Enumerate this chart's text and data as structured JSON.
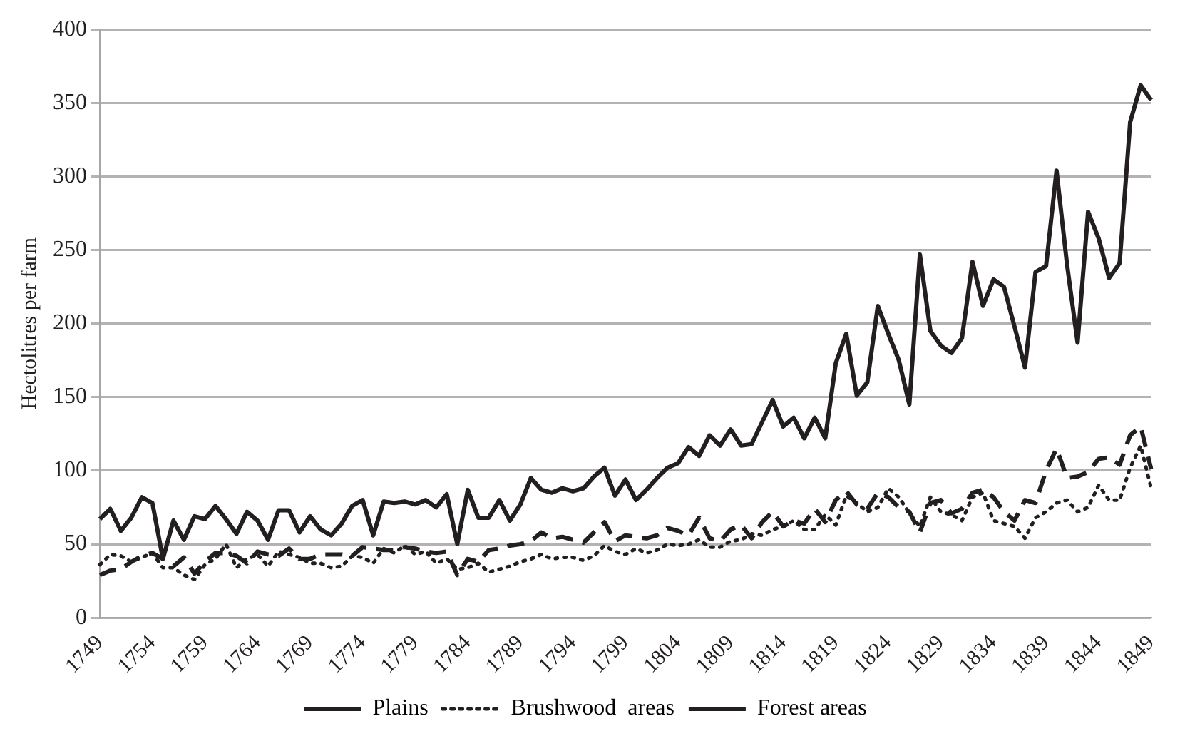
{
  "chart_data": {
    "type": "line",
    "ylabel": "Hectolitres per farm",
    "ylim": [
      0,
      400
    ],
    "yticks": [
      0,
      50,
      100,
      150,
      200,
      250,
      300,
      350,
      400
    ],
    "grid": "y",
    "legend": "bottom",
    "marker": "none",
    "categories": [
      "1749",
      null,
      null,
      null,
      null,
      "1754",
      null,
      null,
      null,
      null,
      "1759",
      null,
      null,
      null,
      null,
      "1764",
      null,
      null,
      null,
      null,
      "1769",
      null,
      null,
      null,
      null,
      "1774",
      null,
      null,
      null,
      null,
      "1779",
      null,
      null,
      null,
      null,
      "1784",
      null,
      null,
      null,
      null,
      "1789",
      null,
      null,
      null,
      null,
      "1794",
      null,
      null,
      null,
      null,
      "1799",
      null,
      null,
      null,
      null,
      "1804",
      null,
      null,
      null,
      null,
      "1809",
      null,
      null,
      null,
      null,
      "1814",
      null,
      null,
      null,
      null,
      "1819",
      null,
      null,
      null,
      null,
      "1824",
      null,
      null,
      null,
      null,
      "1829",
      null,
      null,
      null,
      null,
      "1834",
      null,
      null,
      null,
      null,
      "1839",
      null,
      null,
      null,
      null,
      "1844",
      null,
      null,
      null,
      null,
      "1849"
    ],
    "series": [
      {
        "name": "Plains",
        "color": "#231f20",
        "line_style": "solid",
        "values": [
          67,
          74,
          59,
          68,
          82,
          78,
          40,
          66,
          53,
          69,
          67,
          76,
          67,
          57,
          72,
          66,
          53,
          73,
          73,
          58,
          69,
          60,
          56,
          64,
          76,
          80,
          56,
          79,
          78,
          79,
          77,
          80,
          75,
          84,
          50,
          87,
          68,
          68,
          80,
          66,
          77,
          95,
          87,
          85,
          88,
          86,
          88,
          96,
          102,
          83,
          94,
          80,
          87,
          95,
          102,
          105,
          116,
          110,
          124,
          117,
          128,
          117,
          118,
          133,
          148,
          130,
          136,
          122,
          136,
          122,
          173,
          193,
          151,
          160,
          212,
          193,
          175,
          145,
          247,
          195,
          185,
          180,
          190,
          242,
          212,
          230,
          225,
          198,
          170,
          235,
          239,
          304,
          240,
          187,
          276,
          258,
          231,
          241,
          337,
          362,
          352
        ]
      },
      {
        "name": "Brushwood  areas",
        "color": "#231f20",
        "line_style": "dotted",
        "values": [
          36,
          43,
          42,
          38,
          41,
          44,
          34,
          34,
          29,
          26,
          36,
          40,
          50,
          34,
          40,
          43,
          35,
          45,
          43,
          41,
          37,
          37,
          34,
          35,
          42,
          41,
          37,
          47,
          44,
          49,
          43,
          45,
          37,
          40,
          33,
          34,
          37,
          31,
          33,
          35,
          38,
          40,
          43,
          40,
          41,
          41,
          39,
          42,
          49,
          45,
          43,
          47,
          44,
          46,
          50,
          49,
          50,
          53,
          48,
          48,
          52,
          53,
          57,
          56,
          60,
          62,
          66,
          60,
          60,
          70,
          63,
          83,
          78,
          72,
          75,
          88,
          82,
          71,
          62,
          82,
          72,
          70,
          66,
          82,
          85,
          66,
          64,
          62,
          54,
          68,
          72,
          78,
          80,
          72,
          75,
          90,
          80,
          80,
          102,
          117,
          88
        ]
      },
      {
        "name": "Forest areas",
        "color": "#231f20",
        "line_style": "dashed",
        "values": [
          29,
          32,
          33,
          38,
          42,
          44,
          40,
          35,
          41,
          30,
          38,
          44,
          44,
          42,
          37,
          45,
          43,
          42,
          47,
          40,
          40,
          43,
          43,
          43,
          42,
          48,
          47,
          46,
          46,
          48,
          47,
          45,
          44,
          45,
          29,
          40,
          38,
          46,
          47,
          49,
          50,
          52,
          58,
          54,
          55,
          53,
          51,
          58,
          65,
          52,
          56,
          55,
          54,
          56,
          61,
          59,
          56,
          68,
          54,
          52,
          60,
          63,
          54,
          65,
          72,
          62,
          66,
          64,
          74,
          65,
          80,
          86,
          77,
          74,
          85,
          82,
          75,
          72,
          58,
          78,
          80,
          71,
          74,
          85,
          87,
          82,
          72,
          66,
          80,
          78,
          100,
          115,
          95,
          96,
          99,
          108,
          109,
          104,
          124,
          130,
          101
        ]
      }
    ]
  }
}
